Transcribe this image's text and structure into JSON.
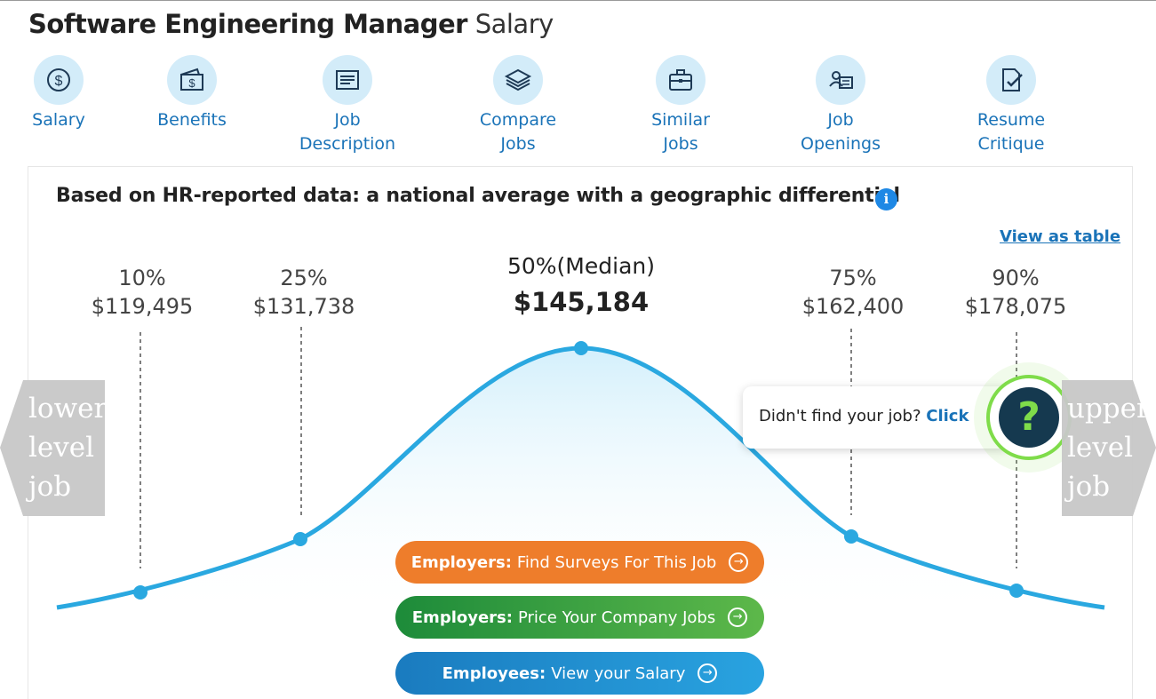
{
  "title": {
    "bold": "Software Engineering Manager",
    "light": "Salary"
  },
  "nav": [
    {
      "id": "salary",
      "lines": [
        "Salary"
      ],
      "icon": "dollar-icon"
    },
    {
      "id": "benefits",
      "lines": [
        "Benefits"
      ],
      "icon": "wallet-icon"
    },
    {
      "id": "job-description",
      "lines": [
        "Job",
        "Description"
      ],
      "icon": "document-icon"
    },
    {
      "id": "compare-jobs",
      "lines": [
        "Compare",
        "Jobs"
      ],
      "icon": "layers-icon"
    },
    {
      "id": "similar-jobs",
      "lines": [
        "Similar",
        "Jobs"
      ],
      "icon": "briefcase-icon"
    },
    {
      "id": "job-openings",
      "lines": [
        "Job",
        "Openings"
      ],
      "icon": "profile-card-icon"
    },
    {
      "id": "resume-critique",
      "lines": [
        "Resume",
        "Critique"
      ],
      "icon": "checked-document-icon"
    }
  ],
  "panel": {
    "heading": "Based on HR-reported data: a national average with a geographic differential",
    "info_glyph": "i",
    "view_table": "View as table"
  },
  "chart_data": {
    "type": "line",
    "title": "",
    "percentiles": [
      {
        "label": "10%",
        "value": 119495,
        "display": "$119,495"
      },
      {
        "label": "25%",
        "value": 131738,
        "display": "$131,738"
      },
      {
        "label": "50%(Median)",
        "value": 145184,
        "display": "$145,184"
      },
      {
        "label": "75%",
        "value": 162400,
        "display": "$162,400"
      },
      {
        "label": "90%",
        "value": 178075,
        "display": "$178,075"
      }
    ],
    "color": "#2aa8e0"
  },
  "side": {
    "lower": [
      "lower",
      "level",
      "job"
    ],
    "upper": [
      "upper",
      "level",
      "job"
    ]
  },
  "help": {
    "text": "Didn't find your job?",
    "link": "Click",
    "glyph": "?"
  },
  "buttons": [
    {
      "bold": "Employers:",
      "text": "Find Surveys For This Job"
    },
    {
      "bold": "Employers:",
      "text": "Price Your Company Jobs"
    },
    {
      "bold": "Employees:",
      "text": "View your Salary"
    }
  ],
  "arrow_glyph": "→"
}
